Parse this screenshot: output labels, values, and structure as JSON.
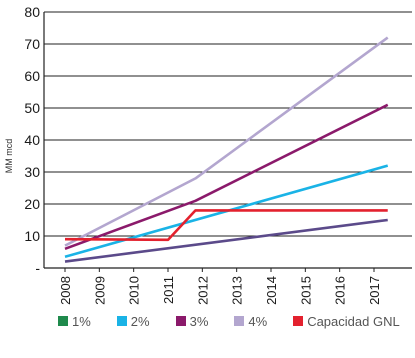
{
  "chart_data": {
    "type": "line",
    "title": "",
    "xlabel": "",
    "ylabel": "MM mcd",
    "ylim": [
      0,
      80
    ],
    "yticks": [
      {
        "value": 0,
        "label": "-"
      },
      {
        "value": 10,
        "label": "10"
      },
      {
        "value": 20,
        "label": "20"
      },
      {
        "value": 30,
        "label": "30"
      },
      {
        "value": 40,
        "label": "40"
      },
      {
        "value": 50,
        "label": "50"
      },
      {
        "value": 60,
        "label": "60"
      },
      {
        "value": 70,
        "label": "70"
      },
      {
        "value": 80,
        "label": "80"
      }
    ],
    "categories": [
      "2008",
      "2009",
      "2010",
      "2011",
      "2012",
      "2013",
      "2014",
      "2015",
      "2016",
      "2017"
    ],
    "grid": "horizontal",
    "legend_position": "bottom",
    "series": [
      {
        "name": "1%",
        "color": "#1f8a4c",
        "x": [
          2008,
          2017.4
        ],
        "y": [
          2,
          15
        ]
      },
      {
        "name": "2%",
        "color": "#1ab3e6",
        "x": [
          2008,
          2017.4
        ],
        "y": [
          3.5,
          32
        ]
      },
      {
        "name": "3%",
        "color": "#8b1a6b",
        "x": [
          2008,
          2011.8,
          2017.4
        ],
        "y": [
          6,
          21,
          51
        ]
      },
      {
        "name": "4%",
        "color": "#b3a6cf",
        "x": [
          2008,
          2011.8,
          2017.4
        ],
        "y": [
          7,
          28,
          72
        ]
      },
      {
        "name": "Capacidad GNL",
        "color": "#e3212e",
        "x": [
          2008,
          2011,
          2011.8,
          2017.4
        ],
        "y": [
          9,
          8.8,
          18,
          18
        ]
      }
    ],
    "lines": [
      {
        "color": "#5b4a8a",
        "x": [
          2008,
          2017.4
        ],
        "y": [
          2,
          15
        ]
      }
    ]
  }
}
